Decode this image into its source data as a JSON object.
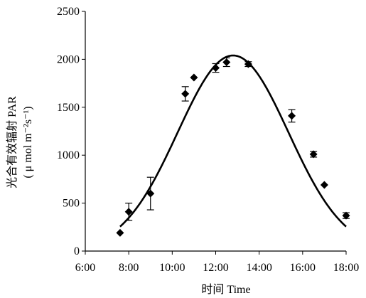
{
  "chart_data": {
    "type": "scatter",
    "xlabel": "时间  Time",
    "ylabel_line1": "光合有效辐射 PAR",
    "ylabel_line2": "( μ mol m⁻²s⁻¹)",
    "xlim": [
      6,
      18
    ],
    "ylim": [
      0,
      2500
    ],
    "x_ticks": [
      {
        "value": 6,
        "label": "6:00"
      },
      {
        "value": 8,
        "label": "8:00"
      },
      {
        "value": 10,
        "label": "10:00"
      },
      {
        "value": 12,
        "label": "12:00"
      },
      {
        "value": 14,
        "label": "14:00"
      },
      {
        "value": 16,
        "label": "16:00"
      },
      {
        "value": 18,
        "label": "18:00"
      }
    ],
    "y_ticks": [
      {
        "value": 0,
        "label": "0"
      },
      {
        "value": 500,
        "label": "500"
      },
      {
        "value": 1000,
        "label": "1000"
      },
      {
        "value": 1500,
        "label": "1500"
      },
      {
        "value": 2000,
        "label": "2000"
      },
      {
        "value": 2500,
        "label": "2500"
      }
    ],
    "points": [
      {
        "x": 7.6,
        "y": 190,
        "err": 0
      },
      {
        "x": 8.0,
        "y": 410,
        "err": 90
      },
      {
        "x": 9.0,
        "y": 600,
        "err": 170
      },
      {
        "x": 10.6,
        "y": 1640,
        "err": 75
      },
      {
        "x": 11.0,
        "y": 1810,
        "err": 0
      },
      {
        "x": 12.0,
        "y": 1910,
        "err": 45
      },
      {
        "x": 12.5,
        "y": 1970,
        "err": 45
      },
      {
        "x": 13.5,
        "y": 1950,
        "err": 25
      },
      {
        "x": 15.5,
        "y": 1410,
        "err": 65
      },
      {
        "x": 16.5,
        "y": 1010,
        "err": 30
      },
      {
        "x": 17.0,
        "y": 690,
        "err": 0
      },
      {
        "x": 18.0,
        "y": 370,
        "err": 30
      }
    ],
    "fit_curve": {
      "type": "gaussian",
      "peak_x": 12.8,
      "peak_y": 2040,
      "sigma": 2.55
    },
    "colors": {
      "marker": "#000000",
      "line": "#000000",
      "axis": "#000000"
    },
    "grid": false,
    "legend": "none"
  }
}
